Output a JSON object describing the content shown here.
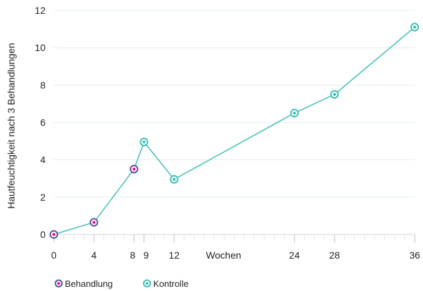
{
  "chart_data": {
    "type": "line",
    "ylabel": "Hautfeuchtigkeit nach 3 Behandlungen",
    "xlabel": "Wochen",
    "x_ticks": [
      0,
      4,
      8,
      9,
      12,
      24,
      28,
      36
    ],
    "y_ticks": [
      0,
      2,
      4,
      6,
      8,
      10,
      12
    ],
    "xlim": [
      0,
      36
    ],
    "ylim": [
      0,
      12
    ],
    "grid": "horizontal",
    "legend_position": "bottom-left",
    "line_color": "#3fbfb4",
    "series": [
      {
        "name": "Behandlung",
        "marker_outer": "#5b4fa0",
        "marker_inner": "#e8118a",
        "points": [
          {
            "x": 0,
            "y": 0
          },
          {
            "x": 4,
            "y": 0.65
          },
          {
            "x": 8,
            "y": 3.5
          }
        ]
      },
      {
        "name": "Kontrolle",
        "marker_outer": "#3fbfb4",
        "marker_inner": "#3fbfb4",
        "points": [
          {
            "x": 9,
            "y": 4.95
          },
          {
            "x": 12,
            "y": 2.95
          },
          {
            "x": 24,
            "y": 6.5
          },
          {
            "x": 28,
            "y": 7.5
          },
          {
            "x": 36,
            "y": 11.1
          }
        ]
      }
    ]
  }
}
